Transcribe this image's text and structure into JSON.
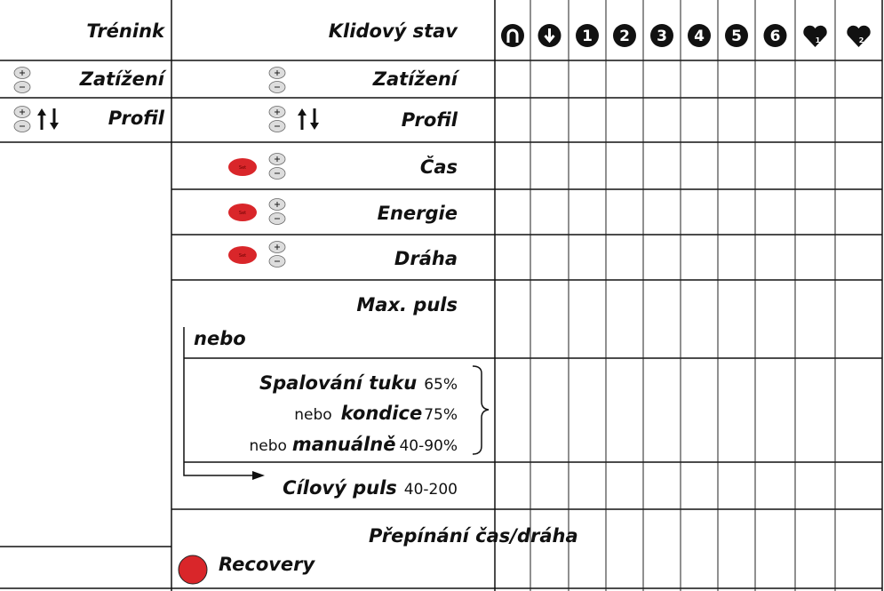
{
  "header": {
    "left": "Trénink",
    "middle": "Klidový stav",
    "columns": [
      "1",
      "2",
      "3",
      "4",
      "5",
      "6"
    ],
    "heart_labels": [
      "1",
      "2"
    ]
  },
  "left_rows": [
    "Zatížení",
    "Profil"
  ],
  "middle_rows": [
    "Zatížení",
    "Profil",
    "Čas",
    "Energie",
    "Dráha",
    "Max. puls"
  ],
  "set_label": "Set",
  "nebo": "nebo",
  "modes": [
    {
      "name": "Spalování tuku",
      "value": "65%"
    },
    {
      "prefix": "nebo",
      "name": "kondice",
      "value": "75%"
    },
    {
      "prefix": "nebo",
      "name": "manuálně",
      "value": "40-90%"
    }
  ],
  "target": {
    "name": "Cílový puls",
    "value": "40-200"
  },
  "switch": "Přepínání čas/dráha",
  "recovery": "Recovery"
}
